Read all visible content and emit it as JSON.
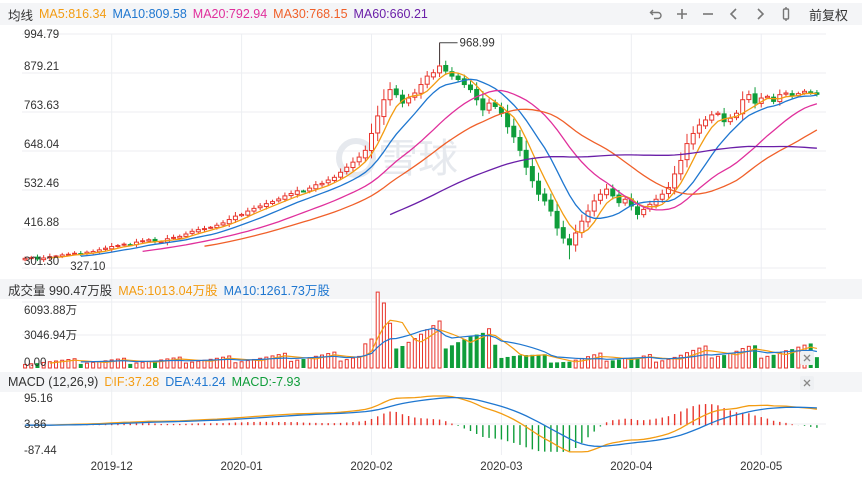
{
  "header": {
    "title": "均线",
    "ma": [
      {
        "label": "MA5:816.34",
        "color": "#f39c12"
      },
      {
        "label": "MA10:809.58",
        "color": "#1f77d0"
      },
      {
        "label": "MA20:792.94",
        "color": "#e0309c"
      },
      {
        "label": "MA30:768.15",
        "color": "#f0602a"
      },
      {
        "label": "MA60:660.21",
        "color": "#6a1fa8"
      }
    ],
    "fq_label": "前复权",
    "controls": [
      "undo-icon",
      "plus-icon",
      "minus-icon",
      "chevron-left-icon",
      "chevron-right-icon",
      "pause-icon"
    ]
  },
  "volume_header": {
    "title": "成交量 990.47万股",
    "ma5": "MA5:1013.04万股",
    "ma10": "MA10:1261.73万股"
  },
  "macd_header": {
    "title": "MACD (12,26,9)",
    "dif": "DIF:37.28",
    "dea": "DEA:41.24",
    "macd": "MACD:-7.93"
  },
  "price_axis": [
    "994.79",
    "879.21",
    "763.63",
    "648.04",
    "532.46",
    "416.88",
    "301.30"
  ],
  "low_label": "327.10",
  "high_label": "968.99",
  "volume_axis": [
    "6093.88万",
    "3046.94万",
    "0.00"
  ],
  "macd_axis": [
    "95.16",
    "3.86",
    "-87.44"
  ],
  "x_labels": [
    "2019-12",
    "2020-01",
    "2020-02",
    "2020-03",
    "2020-04",
    "2020-05"
  ],
  "watermark": "雪球",
  "colors": {
    "up": "#e8352c",
    "down": "#0f9d3a",
    "ma5": "#f39c12",
    "ma10": "#1f77d0",
    "ma20": "#e0309c",
    "ma30": "#f0602a",
    "ma60": "#6a1fa8",
    "dif": "#f39c12",
    "dea": "#1f77d0"
  },
  "chart_data": [
    {
      "type": "candlestick",
      "title": "均线",
      "ylim": [
        301.3,
        994.79
      ],
      "x_ticks": [
        "2019-12",
        "2020-01",
        "2020-02",
        "2020-03",
        "2020-04",
        "2020-05"
      ],
      "annotations": [
        {
          "label": "968.99",
          "kind": "high"
        },
        {
          "label": "327.10",
          "kind": "low"
        }
      ],
      "closes": [
        330,
        332,
        328,
        331,
        335,
        337,
        340,
        342,
        345,
        343,
        348,
        350,
        355,
        360,
        365,
        368,
        372,
        370,
        378,
        382,
        385,
        380,
        378,
        388,
        392,
        395,
        402,
        410,
        415,
        418,
        422,
        428,
        435,
        445,
        455,
        460,
        470,
        478,
        485,
        492,
        498,
        506,
        515,
        522,
        530,
        528,
        538,
        548,
        552,
        562,
        570,
        585,
        600,
        615,
        630,
        650,
        700,
        752,
        800,
        830,
        815,
        790,
        805,
        820,
        845,
        870,
        880,
        900,
        885,
        870,
        860,
        845,
        830,
        800,
        770,
        790,
        780,
        760,
        720,
        690,
        650,
        600,
        560,
        520,
        500,
        470,
        420,
        390,
        370,
        405,
        440,
        470,
        500,
        520,
        535,
        515,
        495,
        505,
        485,
        460,
        475,
        490,
        505,
        520,
        540,
        580,
        620,
        670,
        700,
        725,
        740,
        755,
        760,
        735,
        745,
        760,
        800,
        815,
        790,
        805,
        810,
        795,
        815,
        820,
        812,
        818,
        825,
        820,
        816
      ],
      "series": [
        {
          "name": "MA5",
          "last": 816.34
        },
        {
          "name": "MA10",
          "last": 809.58
        },
        {
          "name": "MA20",
          "last": 792.94
        },
        {
          "name": "MA30",
          "last": 768.15
        },
        {
          "name": "MA60",
          "last": 660.21
        }
      ]
    },
    {
      "type": "bar",
      "title": "成交量",
      "ylim": [
        0,
        6093.88
      ],
      "series": [
        {
          "name": "MA5",
          "last": 1013.04
        },
        {
          "name": "MA10",
          "last": 1261.73
        }
      ]
    },
    {
      "type": "bar+line",
      "title": "MACD (12,26,9)",
      "ylim": [
        -87.44,
        95.16
      ],
      "series": [
        {
          "name": "DIF",
          "last": 37.28
        },
        {
          "name": "DEA",
          "last": 41.24
        },
        {
          "name": "MACD",
          "last": -7.93
        }
      ]
    }
  ]
}
